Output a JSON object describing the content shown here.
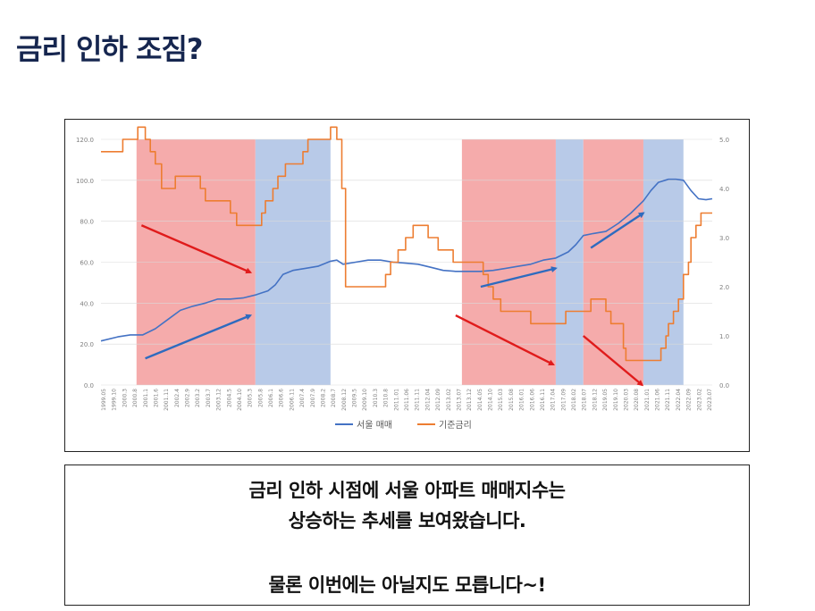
{
  "slide": {
    "title": "금리 인하 조짐?",
    "caption": {
      "line1": "금리 인하 시점에 서울 아파트 매매지수는",
      "line2": "상승하는 추세를 보여왔습니다.",
      "line3": "물론 이번에는 아닐지도 모릅니다~!"
    }
  },
  "colors": {
    "seoul": "#4472C4",
    "rate": "#ED7D31",
    "band_red": "#F4A6A6",
    "band_blue": "#B4C7E7",
    "arrow_red": "#E01B1B",
    "arrow_blue": "#2E6BBF",
    "title": "#16264f"
  },
  "chart_data": {
    "type": "line",
    "title": "",
    "xlabel": "",
    "ylabel": "",
    "ylim": [
      0,
      120
    ],
    "y2lim": [
      0,
      5
    ],
    "y_ticks": [
      "0.0",
      "20.0",
      "40.0",
      "60.0",
      "80.0",
      "100.0",
      "120.0"
    ],
    "y2_ticks": [
      "0.0",
      "1.0",
      "2.0",
      "3.0",
      "4.0",
      "5.0"
    ],
    "x_ticks": [
      "1999.05",
      "1999.10",
      "2000.3",
      "2000.8",
      "2001.1",
      "2001.6",
      "2001.11",
      "2002.4",
      "2002.9",
      "2003.2",
      "2003.7",
      "2003.12",
      "2004.5",
      "2004.10",
      "2005.3",
      "2005.8",
      "2006.1",
      "2006.6",
      "2006.11",
      "2007.4",
      "2007.9",
      "2008.2",
      "2008.7",
      "2008.12",
      "2009.5",
      "2009.10",
      "2010.3",
      "2010.8",
      "2011.01",
      "2011.06",
      "2011.11",
      "2012.04",
      "2012.09",
      "2013.02",
      "2013.07",
      "2013.12",
      "2014.05",
      "2014.10",
      "2015.03",
      "2015.08",
      "2016.01",
      "2016.06",
      "2016.11",
      "2017.04",
      "2017.09",
      "2018.02",
      "2018.07",
      "2018.12",
      "2019.05",
      "2019.10",
      "2020.03",
      "2020.08",
      "2021.01",
      "2021.06",
      "2021.11",
      "2022.04",
      "2022.09",
      "2023.02",
      "2023.07"
    ],
    "x_range": [
      1999.33,
      2023.75
    ],
    "legend": "bottom",
    "series": [
      {
        "name": "서울 매매",
        "axis": "left",
        "x": [
          1999.33,
          2000.0,
          2000.5,
          2001.0,
          2001.5,
          2002.0,
          2002.5,
          2003.0,
          2003.5,
          2004.0,
          2004.5,
          2005.0,
          2005.5,
          2005.75,
          2006.0,
          2006.3,
          2006.6,
          2007.0,
          2007.5,
          2008.0,
          2008.5,
          2008.75,
          2009.0,
          2009.5,
          2010.0,
          2010.5,
          2011.0,
          2011.5,
          2012.0,
          2012.5,
          2013.0,
          2013.5,
          2014.0,
          2014.5,
          2015.0,
          2015.5,
          2016.0,
          2016.5,
          2017.0,
          2017.5,
          2018.0,
          2018.3,
          2018.6,
          2019.0,
          2019.5,
          2020.0,
          2020.5,
          2021.0,
          2021.3,
          2021.6,
          2022.0,
          2022.3,
          2022.6,
          2022.9,
          2023.2,
          2023.5,
          2023.75
        ],
        "values": [
          21.5,
          23.5,
          24.5,
          24.5,
          27.5,
          32,
          36.5,
          38.5,
          40,
          42,
          42,
          42.5,
          44,
          45,
          46,
          49,
          54,
          56,
          57,
          58,
          60.5,
          61,
          59,
          60,
          61,
          61,
          60,
          59.5,
          59,
          57.5,
          56,
          55.5,
          55.5,
          55.5,
          56,
          57,
          58,
          59,
          61,
          62,
          65,
          68.5,
          73,
          74,
          75,
          79,
          84,
          90,
          95,
          99,
          100.5,
          100.5,
          100,
          95,
          91,
          90.5,
          91
        ],
        "color": "#4472C4"
      },
      {
        "name": "기준금리",
        "axis": "right",
        "x": [
          1999.33,
          2000.0,
          2000.2,
          2000.8,
          2001.0,
          2001.1,
          2001.3,
          2001.5,
          2001.75,
          2002.0,
          2002.3,
          2002.5,
          2002.8,
          2003.0,
          2003.3,
          2003.5,
          2004.0,
          2004.5,
          2004.75,
          2005.0,
          2005.5,
          2005.75,
          2005.9,
          2006.2,
          2006.4,
          2006.7,
          2007.0,
          2007.4,
          2007.6,
          2008.0,
          2008.5,
          2008.75,
          2008.95,
          2009.1,
          2010.5,
          2010.7,
          2010.9,
          2011.2,
          2011.5,
          2011.8,
          2012.2,
          2012.4,
          2012.6,
          2012.8,
          2013.2,
          2013.4,
          2013.6,
          2014.5,
          2014.6,
          2014.8,
          2015.0,
          2015.3,
          2015.5,
          2016.2,
          2016.5,
          2017.0,
          2017.5,
          2017.9,
          2018.0,
          2018.9,
          2019.0,
          2019.5,
          2019.7,
          2019.9,
          2020.2,
          2020.3,
          2020.6,
          2020.8,
          2021.0,
          2021.6,
          2021.7,
          2021.9,
          2022.0,
          2022.2,
          2022.4,
          2022.6,
          2022.8,
          2022.9,
          2023.1,
          2023.3,
          2023.75
        ],
        "values": [
          4.75,
          4.75,
          5.0,
          5.25,
          5.25,
          5.0,
          4.75,
          4.5,
          4.0,
          4.0,
          4.25,
          4.25,
          4.25,
          4.25,
          4.0,
          3.75,
          3.75,
          3.5,
          3.25,
          3.25,
          3.25,
          3.5,
          3.75,
          4.0,
          4.25,
          4.5,
          4.5,
          4.75,
          5.0,
          5.0,
          5.25,
          5.0,
          4.0,
          2.0,
          2.0,
          2.25,
          2.5,
          2.75,
          3.0,
          3.25,
          3.25,
          3.0,
          3.0,
          2.75,
          2.75,
          2.5,
          2.5,
          2.5,
          2.25,
          2.0,
          1.75,
          1.5,
          1.5,
          1.5,
          1.25,
          1.25,
          1.25,
          1.5,
          1.5,
          1.75,
          1.75,
          1.5,
          1.25,
          1.25,
          0.75,
          0.5,
          0.5,
          0.5,
          0.5,
          0.5,
          0.75,
          1.0,
          1.25,
          1.5,
          1.75,
          2.25,
          2.5,
          3.0,
          3.25,
          3.5,
          3.5
        ],
        "color": "#ED7D31"
      }
    ],
    "bands": [
      {
        "from": 2000.75,
        "to": 2005.5,
        "color": "red"
      },
      {
        "from": 2005.5,
        "to": 2008.5,
        "color": "blue"
      },
      {
        "from": 2013.75,
        "to": 2017.5,
        "color": "red"
      },
      {
        "from": 2017.5,
        "to": 2018.6,
        "color": "blue"
      },
      {
        "from": 2018.6,
        "to": 2021.0,
        "color": "red"
      },
      {
        "from": 2021.0,
        "to": 2022.6,
        "color": "blue"
      }
    ],
    "annotations": [
      {
        "kind": "arrow",
        "color": "red",
        "x1": 2000.95,
        "y1": 78,
        "x2": 2005.3,
        "y2": 55
      },
      {
        "kind": "arrow",
        "color": "blue",
        "x1": 2001.1,
        "y1": 13,
        "x2": 2005.3,
        "y2": 34
      },
      {
        "kind": "arrow",
        "color": "blue",
        "x1": 2014.5,
        "y1": 48,
        "x2": 2017.5,
        "y2": 57
      },
      {
        "kind": "arrow",
        "color": "red",
        "x1": 2013.5,
        "y1": 34,
        "x2": 2017.4,
        "y2": 10
      },
      {
        "kind": "arrow",
        "color": "blue",
        "x1": 2018.9,
        "y1": 67,
        "x2": 2021.0,
        "y2": 84
      },
      {
        "kind": "arrow",
        "color": "red",
        "x1": 2018.6,
        "y1": 24,
        "x2": 2020.95,
        "y2": 0
      }
    ]
  }
}
